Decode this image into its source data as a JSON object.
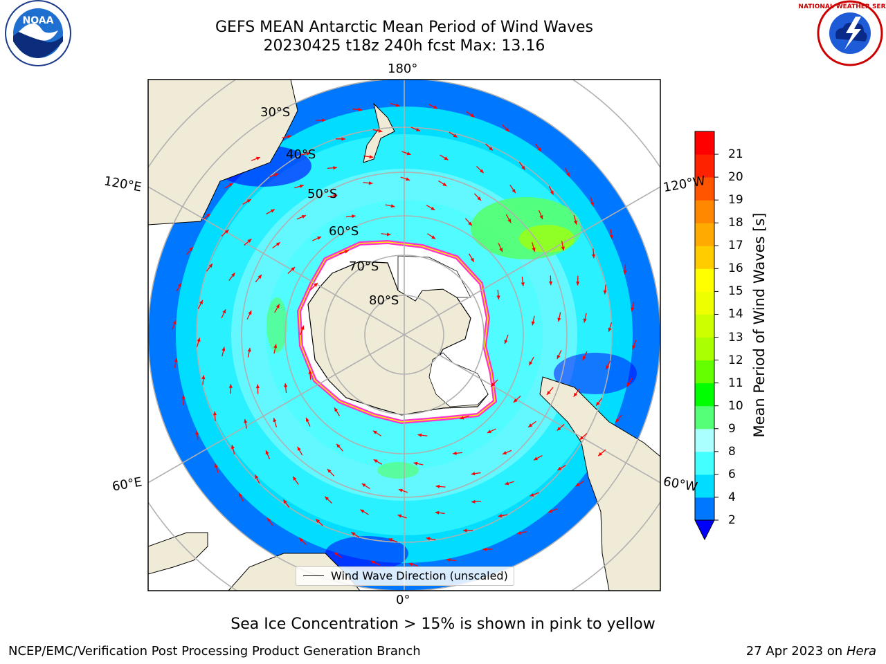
{
  "title": {
    "line1": "GEFS MEAN Antarctic Mean Period of Wind Waves",
    "line2": "20230425 t18z 240h fcst   Max: 13.16"
  },
  "logos": {
    "left": "noaa-logo",
    "right": "national-weather-service-logo",
    "left_text": "NOAA",
    "right_text": "NATIONAL WEATHER SERVICE"
  },
  "map": {
    "longitude_labels": {
      "top": "180°",
      "bottom": "0°",
      "left_upper": "120°E",
      "left_lower": "60°E",
      "right_upper": "120°W",
      "right_lower": "60°W"
    },
    "latitude_labels": [
      "30°S",
      "40°S",
      "50°S",
      "60°S",
      "70°S",
      "80°S"
    ],
    "legend": "Wind Wave Direction (unscaled)",
    "colors": {
      "land": "#efebd7",
      "ice": "#ffffff",
      "ice_edge": "#ff33cc",
      "arrow": "#ff0000",
      "grid": "#b0b0b0"
    }
  },
  "colorbar": {
    "label": "Mean Period of Wind Waves [s]",
    "ticks": [
      "2",
      "4",
      "6",
      "8",
      "9",
      "10",
      "11",
      "12",
      "13",
      "14",
      "15",
      "16",
      "17",
      "18",
      "19",
      "20",
      "21"
    ],
    "colors": [
      "#0077ff",
      "#00ddff",
      "#44ffff",
      "#aaffff",
      "#55ff77",
      "#00ff00",
      "#66ff00",
      "#aaff00",
      "#ccff00",
      "#eeff00",
      "#ffff00",
      "#ffcc00",
      "#ffaa00",
      "#ff8800",
      "#ff5500",
      "#ff2200",
      "#ff0000"
    ],
    "under_color": "#0000ff"
  },
  "caption": "Sea Ice Concentration > 15% is shown in pink to yellow",
  "footer": {
    "left": "NCEP/EMC/Verification Post Processing Product Generation Branch",
    "right_date": "27 Apr 2023 on ",
    "right_host": "Hera"
  }
}
